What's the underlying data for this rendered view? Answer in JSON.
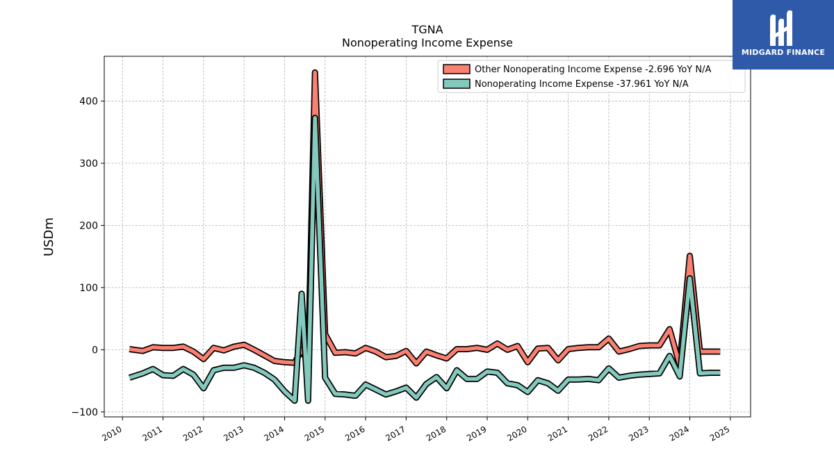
{
  "chart_data": {
    "type": "line",
    "title": "TGNA",
    "subtitle": "Nonoperating Income Expense",
    "ylabel": "USDm",
    "xlabel": "",
    "xlim": [
      2009.55,
      2025.5
    ],
    "ylim": [
      -108,
      472
    ],
    "grid": true,
    "legend_position": "top-right",
    "x_ticks": [
      2010,
      2011,
      2012,
      2013,
      2014,
      2015,
      2016,
      2017,
      2018,
      2019,
      2020,
      2021,
      2022,
      2023,
      2024,
      2025
    ],
    "y_ticks": [
      -100,
      0,
      100,
      200,
      300,
      400
    ],
    "x": [
      2010.17,
      2010.5,
      2010.75,
      2011.0,
      2011.25,
      2011.5,
      2011.75,
      2012.0,
      2012.25,
      2012.5,
      2012.75,
      2013.0,
      2013.25,
      2013.5,
      2013.75,
      2014.0,
      2014.25,
      2014.42,
      2014.58,
      2014.75,
      2015.0,
      2015.25,
      2015.5,
      2015.75,
      2016.0,
      2016.25,
      2016.5,
      2016.75,
      2017.0,
      2017.25,
      2017.5,
      2017.75,
      2018.0,
      2018.25,
      2018.5,
      2018.75,
      2019.0,
      2019.25,
      2019.5,
      2019.75,
      2020.0,
      2020.25,
      2020.5,
      2020.75,
      2021.0,
      2021.25,
      2021.5,
      2021.75,
      2022.0,
      2022.25,
      2022.5,
      2022.75,
      2023.0,
      2023.25,
      2023.5,
      2023.75,
      2024.0,
      2024.25,
      2024.5,
      2024.75
    ],
    "series": [
      {
        "name": "Other Nonoperating Income Expense  -2.696 YoY N/A",
        "color": "#fa8072",
        "values": [
          1,
          -2,
          4,
          3,
          3,
          5,
          -3,
          -15,
          3,
          -1,
          5,
          8,
          0,
          -9,
          -18,
          -20,
          -21,
          0,
          -20,
          446,
          25,
          -5,
          -4,
          -6,
          3,
          -3,
          -12,
          -10,
          -2,
          -22,
          -3,
          -9,
          -14,
          1,
          1,
          3,
          0,
          10,
          0,
          6,
          -20,
          2,
          3,
          -17,
          1,
          3,
          4,
          4,
          18,
          -3,
          1,
          6,
          7,
          7,
          33,
          -25,
          151,
          -3,
          -3,
          -3
        ],
        "last_value": -2.696,
        "yoy": "N/A"
      },
      {
        "name": "Nonoperating Income Expense  -37.961 YoY N/A",
        "color": "#84c9bd",
        "values": [
          -45,
          -38,
          -31,
          -41,
          -42,
          -31,
          -40,
          -62,
          -33,
          -29,
          -29,
          -25,
          -29,
          -37,
          -48,
          -67,
          -82,
          90,
          -82,
          373,
          -45,
          -71,
          -72,
          -74,
          -56,
          -64,
          -72,
          -67,
          -61,
          -77,
          -55,
          -44,
          -62,
          -33,
          -47,
          -47,
          -35,
          -37,
          -54,
          -57,
          -68,
          -49,
          -54,
          -66,
          -48,
          -48,
          -47,
          -49,
          -30,
          -45,
          -42,
          -40,
          -39,
          -38,
          -10,
          -43,
          115,
          -38,
          -37,
          -37
        ],
        "last_value": -37.961,
        "yoy": "N/A"
      }
    ]
  },
  "logo": {
    "text": "MIDGARD FINANCE",
    "background": "#2e5aa9"
  }
}
